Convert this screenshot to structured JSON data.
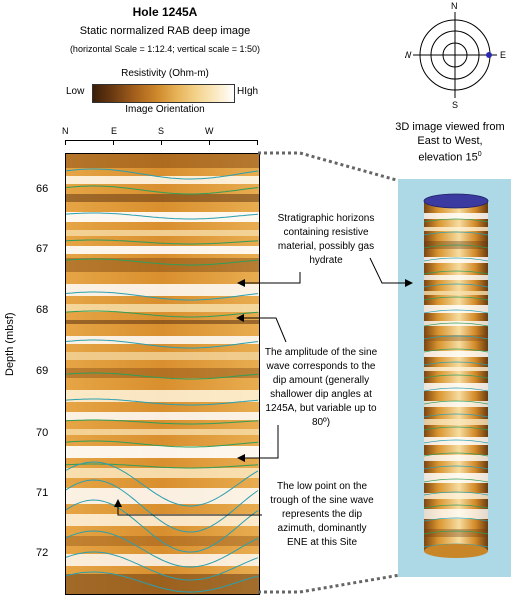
{
  "header": {
    "title": "Hole 1245A",
    "subtitle": "Static normalized RAB deep image",
    "scale": "(horizontal Scale = 1:12.4; vertical scale = 1:50)"
  },
  "colorbar": {
    "label": "Resistivity (Ohm-m)",
    "low": "Low",
    "high": "HIgh",
    "colors": [
      "#3a1e08",
      "#6b3a12",
      "#a5601c",
      "#cf8a2c",
      "#e8b45a",
      "#f4d48e",
      "#fbebc6",
      "#ffffff"
    ]
  },
  "orientation": {
    "label": "Image Orientation",
    "directions": [
      "N",
      "E",
      "S",
      "W"
    ]
  },
  "depth_axis": {
    "label": "Depth (mbsf)",
    "ticks": [
      "66",
      "67",
      "68",
      "69",
      "70",
      "71",
      "72"
    ]
  },
  "annotations": {
    "horizons": "Stratigraphic horizons containing resistive material, possibly gas hydrate",
    "amplitude": "The amplitude of the sine wave corresponds to the dip amount (generally shallower dip angles at 1245A, but variable up to 80º)",
    "trough": "The low point on the trough of the sine wave represents the dip azimuth, dominantly ENE at this Site"
  },
  "compass": {
    "n": "N",
    "s": "S",
    "e": "E",
    "w": "W"
  },
  "view_caption": {
    "line1": "3D image viewed from",
    "line2": "East to West,",
    "line3": "elevation 15",
    "degree": "0"
  },
  "colors": {
    "sky_blue": "#add8e6",
    "cap_blue": "#3a3aa0",
    "sine_teal": "#2a9fb0",
    "horizon_green": "#2e9e5a"
  }
}
